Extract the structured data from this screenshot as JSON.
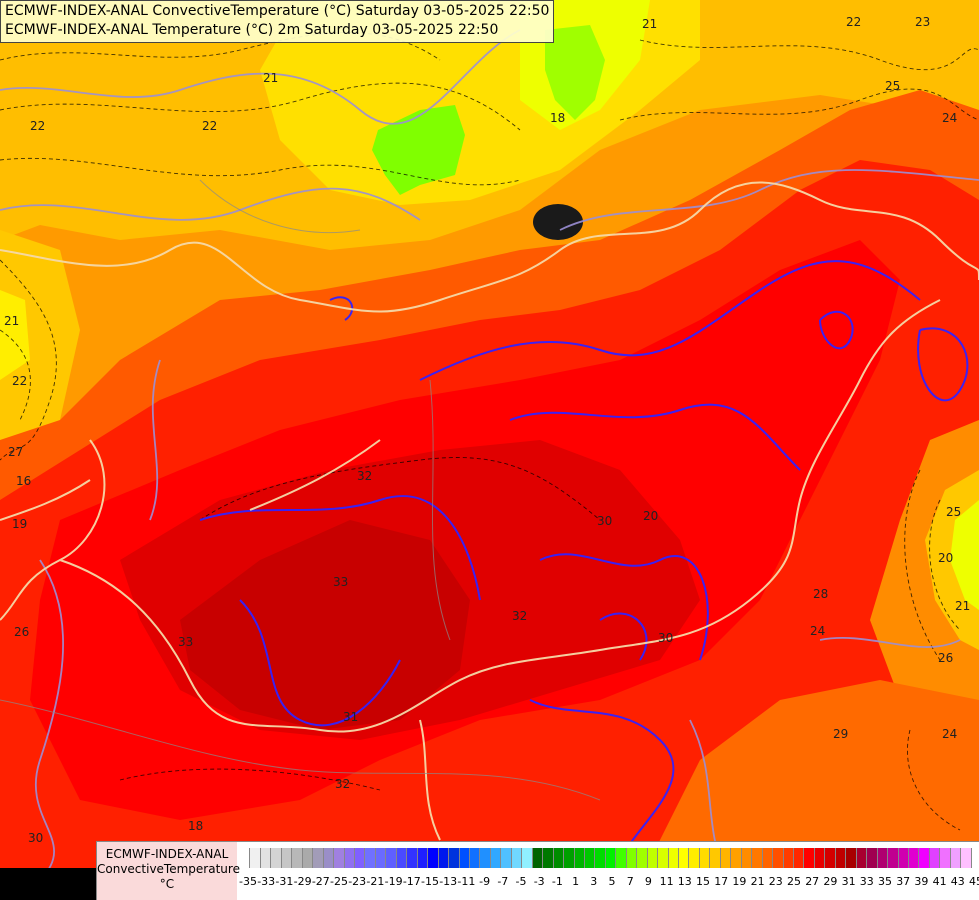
{
  "title": {
    "line1": "ECMWF-INDEX-ANAL ConvectiveTemperature (°C) Saturday 03-05-2025 22:50",
    "line2": "ECMWF-INDEX-ANAL Temperature (°C) 2m Saturday 03-05-2025 22:50"
  },
  "contour_labels": [
    {
      "text": "21"
    },
    {
      "text": "22"
    },
    {
      "text": "23"
    },
    {
      "text": "18"
    },
    {
      "text": "22"
    },
    {
      "text": "21"
    },
    {
      "text": "22"
    },
    {
      "text": "21"
    },
    {
      "text": "22"
    },
    {
      "text": "25"
    },
    {
      "text": "24"
    },
    {
      "text": "27"
    },
    {
      "text": "16"
    },
    {
      "text": "32"
    },
    {
      "text": "30"
    },
    {
      "text": "20"
    },
    {
      "text": "33"
    },
    {
      "text": "33"
    },
    {
      "text": "32"
    },
    {
      "text": "31"
    },
    {
      "text": "32"
    },
    {
      "text": "30"
    },
    {
      "text": "28"
    },
    {
      "text": "24"
    },
    {
      "text": "26"
    },
    {
      "text": "29"
    },
    {
      "text": "24"
    },
    {
      "text": "25"
    },
    {
      "text": "30"
    },
    {
      "text": "18"
    },
    {
      "text": "20"
    },
    {
      "text": "26"
    },
    {
      "text": "21"
    },
    {
      "text": "19"
    }
  ],
  "legend": {
    "title_line1": "ECMWF-INDEX-ANAL",
    "title_line2": "ConvectiveTemperature",
    "unit": "°C",
    "ticks": [
      "-35",
      "-33",
      "-31",
      "-29",
      "-27",
      "-25",
      "-23",
      "-21",
      "-19",
      "-17",
      "-15",
      "-13",
      "-11",
      "-9",
      "-7",
      "-5",
      "-3",
      "-1",
      "1",
      "3",
      "5",
      "7",
      "9",
      "11",
      "13",
      "15",
      "17",
      "19",
      "21",
      "23",
      "25",
      "27",
      "29",
      "31",
      "33",
      "35",
      "37",
      "39",
      "41",
      "43",
      "45"
    ],
    "colors": [
      "#ffffff",
      "#f0f0f0",
      "#e2e2e2",
      "#d4d4d4",
      "#c6c6c6",
      "#b8b8b8",
      "#aaaaaa",
      "#a29cb8",
      "#9a8ec8",
      "#a080e0",
      "#9070f0",
      "#8060ff",
      "#7070ff",
      "#6a6aff",
      "#5f5fff",
      "#4a4aff",
      "#3333ff",
      "#1f1fff",
      "#0000ff",
      "#0018ee",
      "#0033dd",
      "#0050ff",
      "#1070ff",
      "#2090ff",
      "#30a8ff",
      "#50c0ff",
      "#70d8ff",
      "#90f0ff",
      "#006400",
      "#007800",
      "#008c00",
      "#00a000",
      "#00b400",
      "#00c800",
      "#00dc00",
      "#00f000",
      "#40ff00",
      "#80ff00",
      "#a0ff00",
      "#c0ff00",
      "#d8ff00",
      "#eeff00",
      "#ffff00",
      "#ffee00",
      "#ffdc00",
      "#ffc800",
      "#ffb400",
      "#ffa000",
      "#ff8c00",
      "#ff7800",
      "#ff6400",
      "#ff5000",
      "#ff3c00",
      "#ff2800",
      "#ff0000",
      "#e80000",
      "#d40000",
      "#c00000",
      "#a80000",
      "#a80030",
      "#a00050",
      "#b00070",
      "#c00090",
      "#d000b0",
      "#e000d0",
      "#f000ff",
      "#e040ff",
      "#f070ff",
      "#f0a0ff",
      "#ffc0ff"
    ]
  }
}
